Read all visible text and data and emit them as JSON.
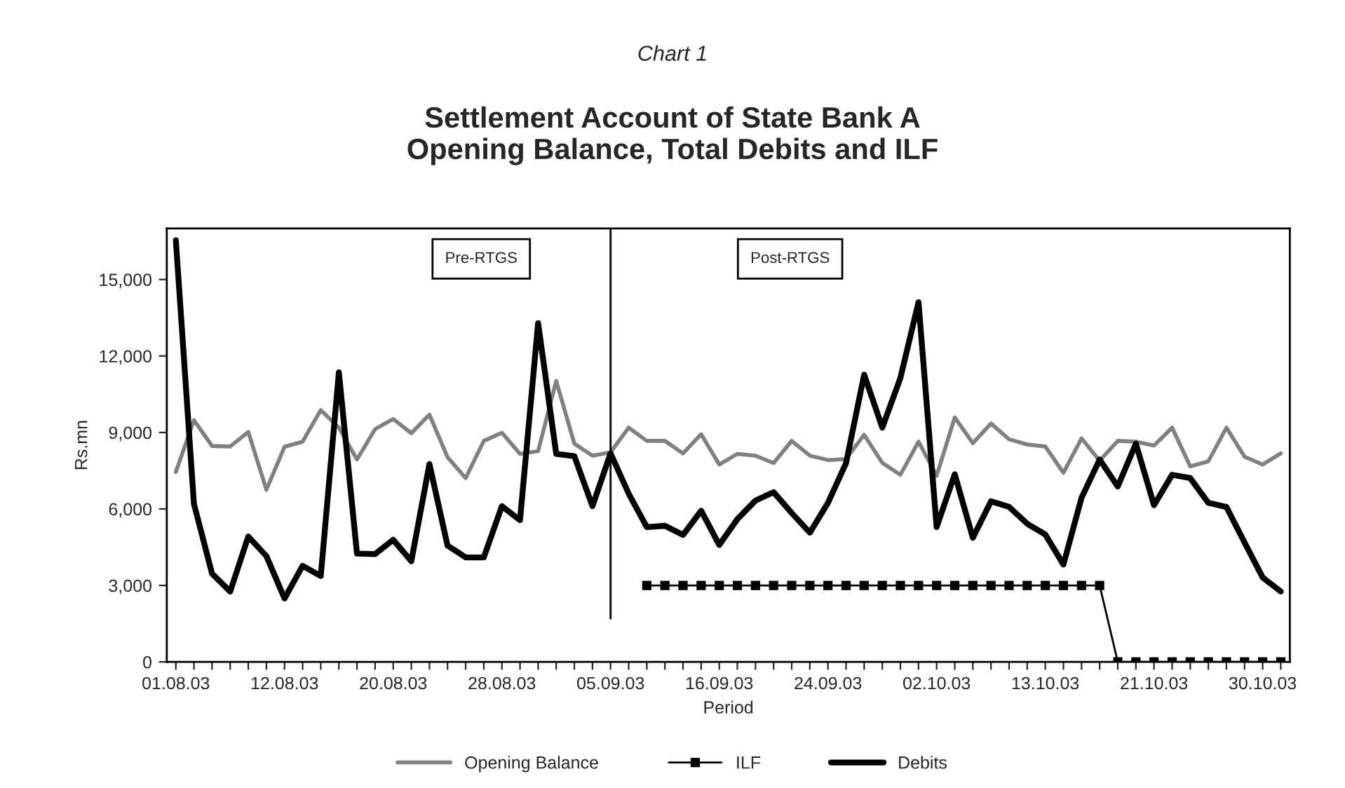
{
  "chart_data": {
    "type": "line",
    "title": "Settlement Account of State Bank A\nOpening Balance, Total Debits and ILF",
    "xlabel": "Period",
    "ylabel": "Rs.mn",
    "annotations": [
      "Chart 1",
      "Pre-RTGS",
      "Post-RTGS"
    ],
    "categories": [
      "01.08.03",
      null,
      null,
      null,
      null,
      null,
      "12.08.03",
      null,
      null,
      null,
      null,
      null,
      "20.08.03",
      null,
      null,
      null,
      null,
      null,
      "28.08.03",
      null,
      null,
      null,
      null,
      null,
      "05.09.03",
      null,
      null,
      null,
      null,
      null,
      "16.09.03",
      null,
      null,
      null,
      null,
      null,
      "24.09.03",
      null,
      null,
      null,
      null,
      null,
      "02.10.03",
      null,
      null,
      null,
      null,
      null,
      "13.10.03",
      null,
      null,
      null,
      null,
      null,
      "21.10.03",
      null,
      null,
      null,
      null,
      null,
      "30.10.03",
      null
    ],
    "series": [
      {
        "name": "Opening Balance",
        "color": "#808080",
        "marker": "none",
        "values": [
          7450,
          9480,
          8470,
          8450,
          9020,
          6750,
          8440,
          8640,
          9880,
          9190,
          7940,
          9130,
          9530,
          8970,
          9700,
          8030,
          7210,
          8670,
          8990,
          8160,
          8270,
          11020,
          8560,
          8090,
          8220,
          9190,
          8670,
          8670,
          8180,
          8930,
          7740,
          8160,
          8090,
          7800,
          8670,
          8090,
          7920,
          7960,
          8910,
          7810,
          7340,
          8640,
          7300,
          9590,
          8580,
          9350,
          8730,
          8530,
          8450,
          7420,
          8770,
          7890,
          8670,
          8640,
          8490,
          9190,
          7670,
          7870,
          9190,
          8050,
          7740,
          8180
        ]
      },
      {
        "name": "ILF",
        "color": "#000000",
        "marker": "square",
        "values": [
          null,
          null,
          null,
          null,
          null,
          null,
          null,
          null,
          null,
          null,
          null,
          null,
          null,
          null,
          null,
          null,
          null,
          null,
          null,
          null,
          null,
          null,
          null,
          null,
          null,
          null,
          3000,
          3000,
          3000,
          3000,
          3000,
          3000,
          3000,
          3000,
          3000,
          3000,
          3000,
          3000,
          3000,
          3000,
          3000,
          3000,
          3000,
          3000,
          3000,
          3000,
          3000,
          3000,
          3000,
          3000,
          3000,
          3000,
          0,
          0,
          0,
          0,
          0,
          0,
          0,
          0,
          0,
          0
        ]
      },
      {
        "name": "Debits",
        "color": "#000000",
        "marker": "none",
        "values": [
          16540,
          6200,
          3460,
          2760,
          4920,
          4150,
          2490,
          3770,
          3370,
          11360,
          4250,
          4230,
          4790,
          3950,
          7760,
          4560,
          4100,
          4100,
          6110,
          5560,
          13290,
          8160,
          8070,
          6110,
          8180,
          6600,
          5290,
          5340,
          4980,
          5930,
          4590,
          5600,
          6330,
          6660,
          5840,
          5070,
          6240,
          7800,
          11270,
          9190,
          11140,
          14110,
          5290,
          7360,
          4870,
          6300,
          6080,
          5420,
          5000,
          3820,
          6440,
          7940,
          6880,
          8560,
          6150,
          7340,
          7210,
          6240,
          6080,
          4680,
          3310,
          2760
        ]
      }
    ],
    "ref_lines": [
      {
        "axis": "x",
        "value": "05.09.03",
        "color": "#000000"
      }
    ],
    "ylim": [
      0,
      17000
    ],
    "yticks": [
      0,
      {
        "value": 3000,
        "label": "3,000"
      },
      {
        "value": 6000,
        "label": "6,000"
      },
      {
        "value": 9000,
        "label": "9,000"
      },
      {
        "value": 12000,
        "label": "12,000"
      },
      {
        "value": 15000,
        "label": "15,000"
      }
    ],
    "grid": false,
    "legend": "bottom",
    "line_style": "solid"
  }
}
